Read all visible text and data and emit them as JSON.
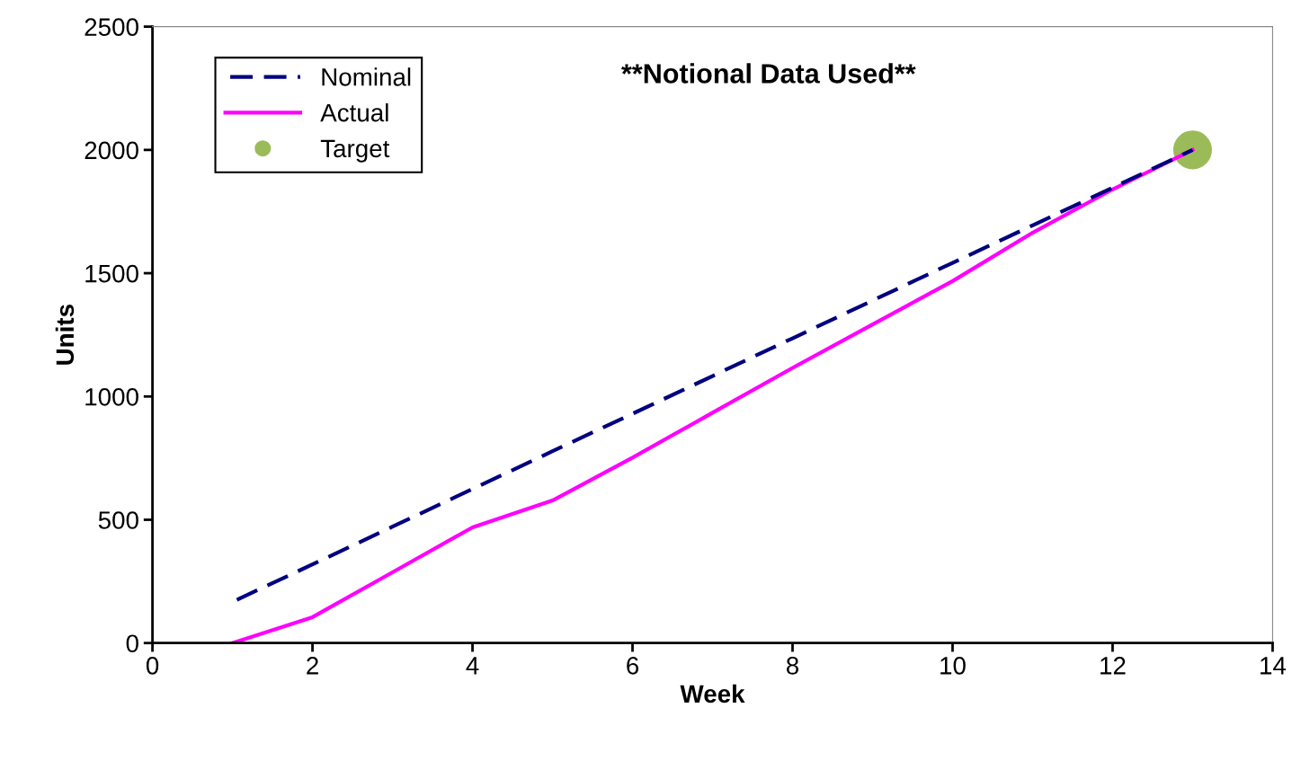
{
  "chart_data": {
    "type": "line",
    "xlabel": "Week",
    "ylabel": "Units",
    "annotations": [
      "**Notional Data Used**"
    ],
    "xlim": [
      0,
      14
    ],
    "xticks": [
      0,
      2,
      4,
      6,
      8,
      10,
      12,
      14
    ],
    "ylim": [
      0,
      2500
    ],
    "yticks": [
      0,
      500,
      1000,
      1500,
      2000,
      2500
    ],
    "grid": false,
    "legend": "top left",
    "series": [
      {
        "name": "Nominal",
        "line_style": "dashed",
        "marker": "none",
        "color": "#000080",
        "x": [
          1,
          2,
          3,
          4,
          5,
          6,
          7,
          8,
          9,
          10,
          11,
          12,
          13
        ],
        "values": [
          167,
          319,
          472,
          625,
          778,
          930,
          1083,
          1236,
          1389,
          1542,
          1694,
          1847,
          2000
        ]
      },
      {
        "name": "Actual",
        "line_style": "solid",
        "marker": "none",
        "color": "#ff00ff",
        "x": [
          1,
          2,
          3,
          4,
          5,
          6,
          7,
          8,
          9,
          10,
          11,
          12,
          13
        ],
        "values": [
          0,
          105,
          287,
          469,
          578,
          752,
          934,
          1116,
          1292,
          1468,
          1664,
          1840,
          2000
        ]
      },
      {
        "name": "Target",
        "type": "scatter",
        "marker": "circle",
        "color": "#9bbb59",
        "x": [
          13
        ],
        "values": [
          2000
        ]
      }
    ]
  }
}
